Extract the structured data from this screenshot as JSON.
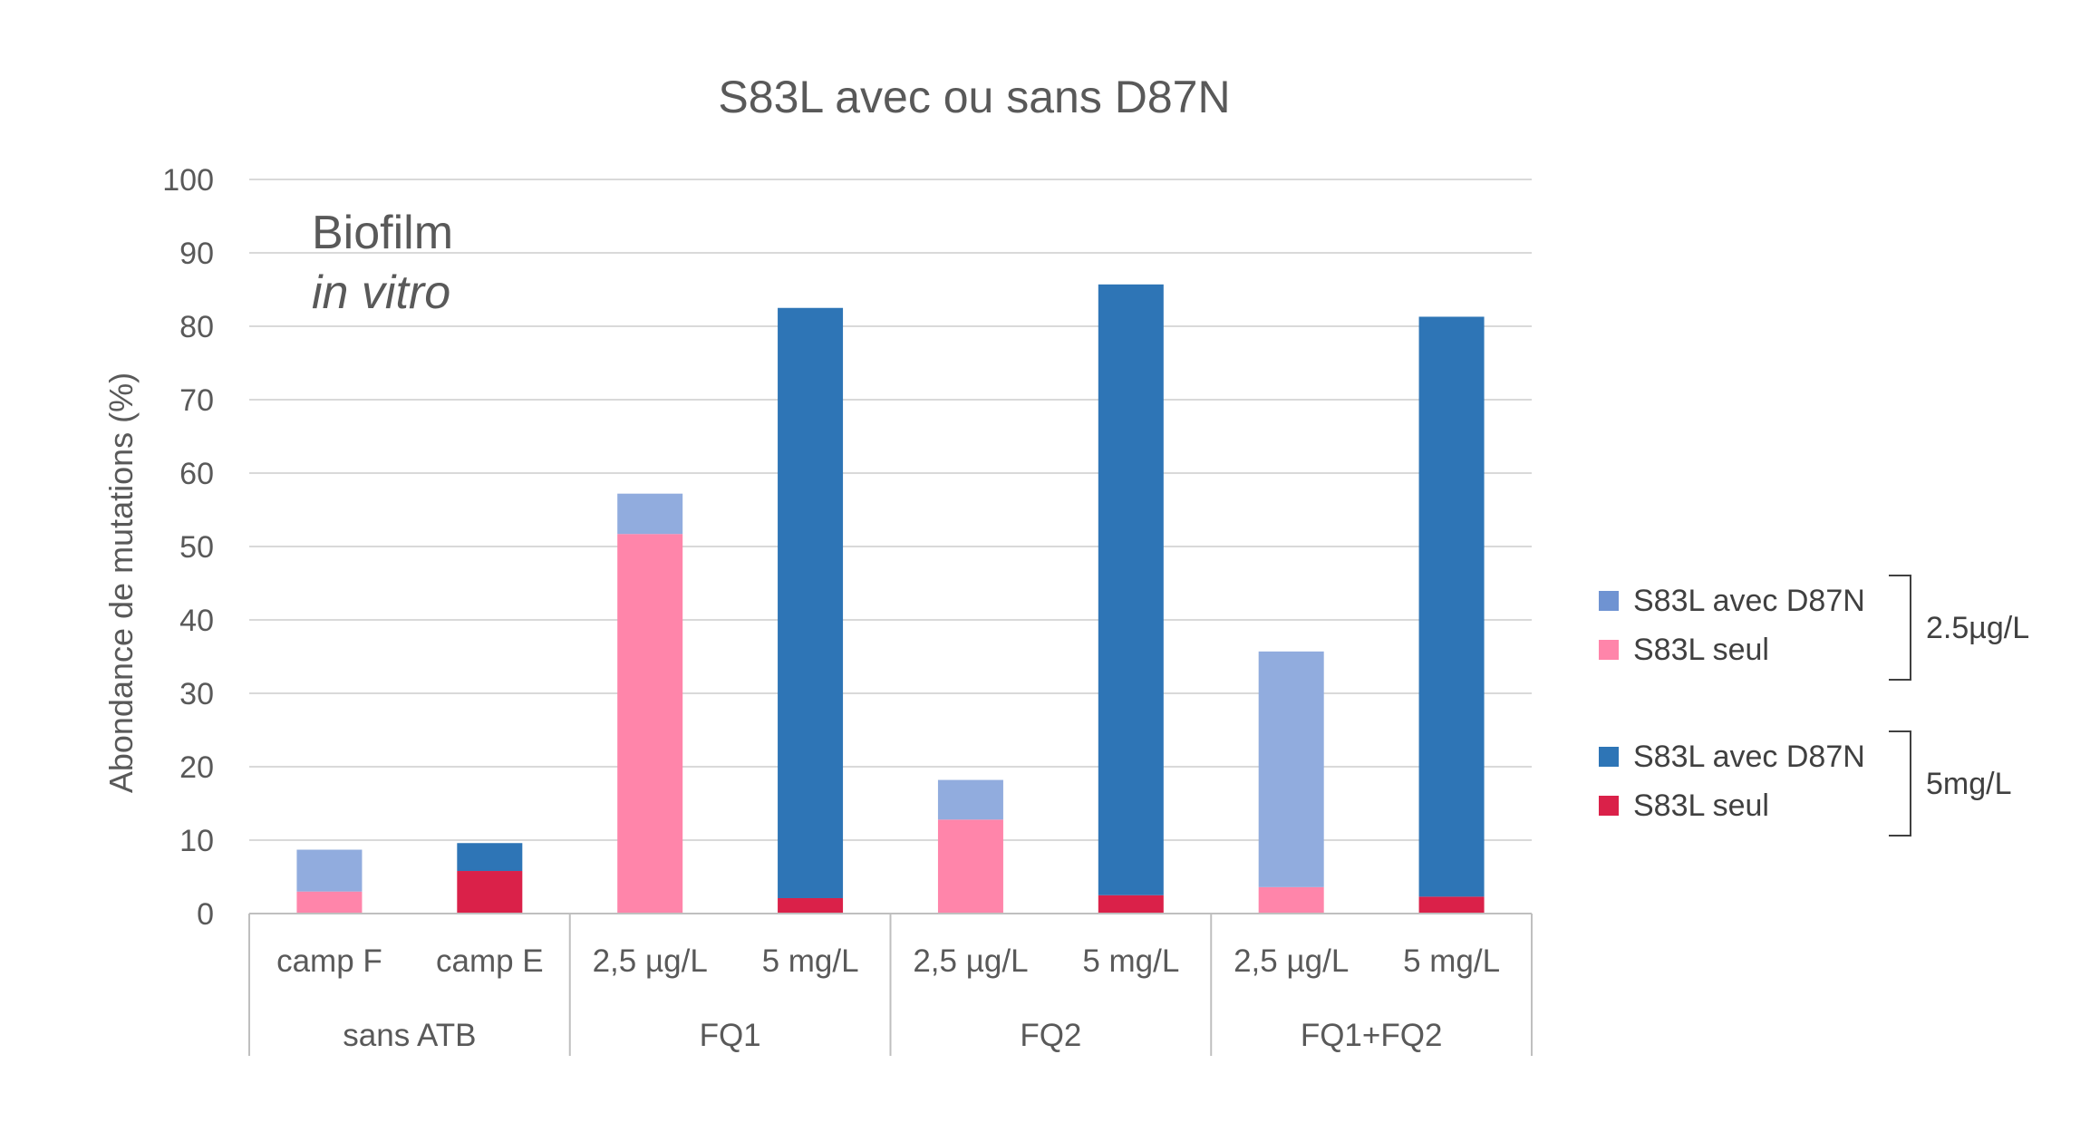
{
  "chart_data": {
    "type": "bar",
    "stacked": true,
    "title": "S83L avec ou sans D87N",
    "ylabel": "Abondance de mutations (%)",
    "ylim": [
      0,
      100
    ],
    "yticks": [
      "0",
      "10",
      "20",
      "30",
      "40",
      "50",
      "60",
      "70",
      "80",
      "90",
      "100"
    ],
    "grid": true,
    "annotation": {
      "line1": "Biofilm",
      "line2": "in vitro"
    },
    "categories": [
      "camp F",
      "camp E",
      "2,5 µg/L",
      "5 mg/L",
      "2,5 µg/L",
      "5 mg/L",
      "2,5 µg/L",
      "5 mg/L"
    ],
    "groups": [
      {
        "label": "sans ATB",
        "span": [
          0,
          1
        ]
      },
      {
        "label": "FQ1",
        "span": [
          2,
          3
        ]
      },
      {
        "label": "FQ2",
        "span": [
          4,
          5
        ]
      },
      {
        "label": "FQ1+FQ2",
        "span": [
          6,
          7
        ]
      }
    ],
    "bars": [
      {
        "bottom": 3.0,
        "total": 8.7,
        "bottom_color": "#FF85AA",
        "top_color": "#91ACDE"
      },
      {
        "bottom": 5.8,
        "total": 9.6,
        "bottom_color": "#DA2149",
        "top_color": "#2E75B6"
      },
      {
        "bottom": 51.7,
        "total": 57.2,
        "bottom_color": "#FF85AA",
        "top_color": "#91ACDE"
      },
      {
        "bottom": 2.1,
        "total": 82.5,
        "bottom_color": "#DA2149",
        "top_color": "#2E75B6"
      },
      {
        "bottom": 12.8,
        "total": 18.2,
        "bottom_color": "#FF85AA",
        "top_color": "#91ACDE"
      },
      {
        "bottom": 2.5,
        "total": 85.7,
        "bottom_color": "#DA2149",
        "top_color": "#2E75B6"
      },
      {
        "bottom": 3.6,
        "total": 35.7,
        "bottom_color": "#FF85AA",
        "top_color": "#91ACDE"
      },
      {
        "bottom": 2.3,
        "total": 81.3,
        "bottom_color": "#DA2149",
        "top_color": "#2E75B6"
      }
    ],
    "legend": {
      "placement": "right",
      "groups": [
        {
          "label": "2.5µg/L",
          "entries": [
            {
              "name": "S83L avec D87N",
              "color": "#6F93D2"
            },
            {
              "name": "S83L seul",
              "color": "#FF85AA"
            }
          ]
        },
        {
          "label": "5mg/L",
          "entries": [
            {
              "name": "S83L avec D87N",
              "color": "#2E75B6"
            },
            {
              "name": "S83L seul",
              "color": "#DA2149"
            }
          ]
        }
      ]
    },
    "colors": {
      "grid": "#D9D9D9",
      "axis": "#BFBFBF",
      "text": "#595959"
    }
  }
}
